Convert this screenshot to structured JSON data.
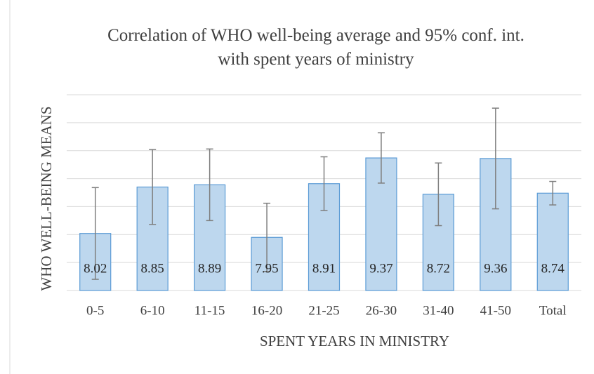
{
  "chart_data": {
    "type": "bar",
    "title": "Correlation of WHO well-being average and 95% conf. int. with spent years of ministry",
    "xlabel": "SPENT YEARS IN MINISTRY",
    "ylabel": "WHO WELL-BEING MEANS",
    "categories": [
      "0-5",
      "6-10",
      "11-15",
      "16-20",
      "21-25",
      "26-30",
      "31-40",
      "41-50",
      "Total"
    ],
    "values": [
      8.02,
      8.85,
      8.89,
      7.95,
      8.91,
      9.37,
      8.72,
      9.36,
      8.74
    ],
    "errors": [
      0.82,
      0.67,
      0.64,
      0.61,
      0.48,
      0.45,
      0.56,
      0.9,
      0.21
    ],
    "color": "#bdd7ee",
    "edge_color": "#5b9bd5",
    "error_color": "#7f7f7f",
    "ylim": [
      7,
      10.5
    ],
    "yticks": [
      7,
      7.5,
      8,
      8.5,
      9,
      9.5,
      10,
      10.5
    ],
    "grid": true
  }
}
